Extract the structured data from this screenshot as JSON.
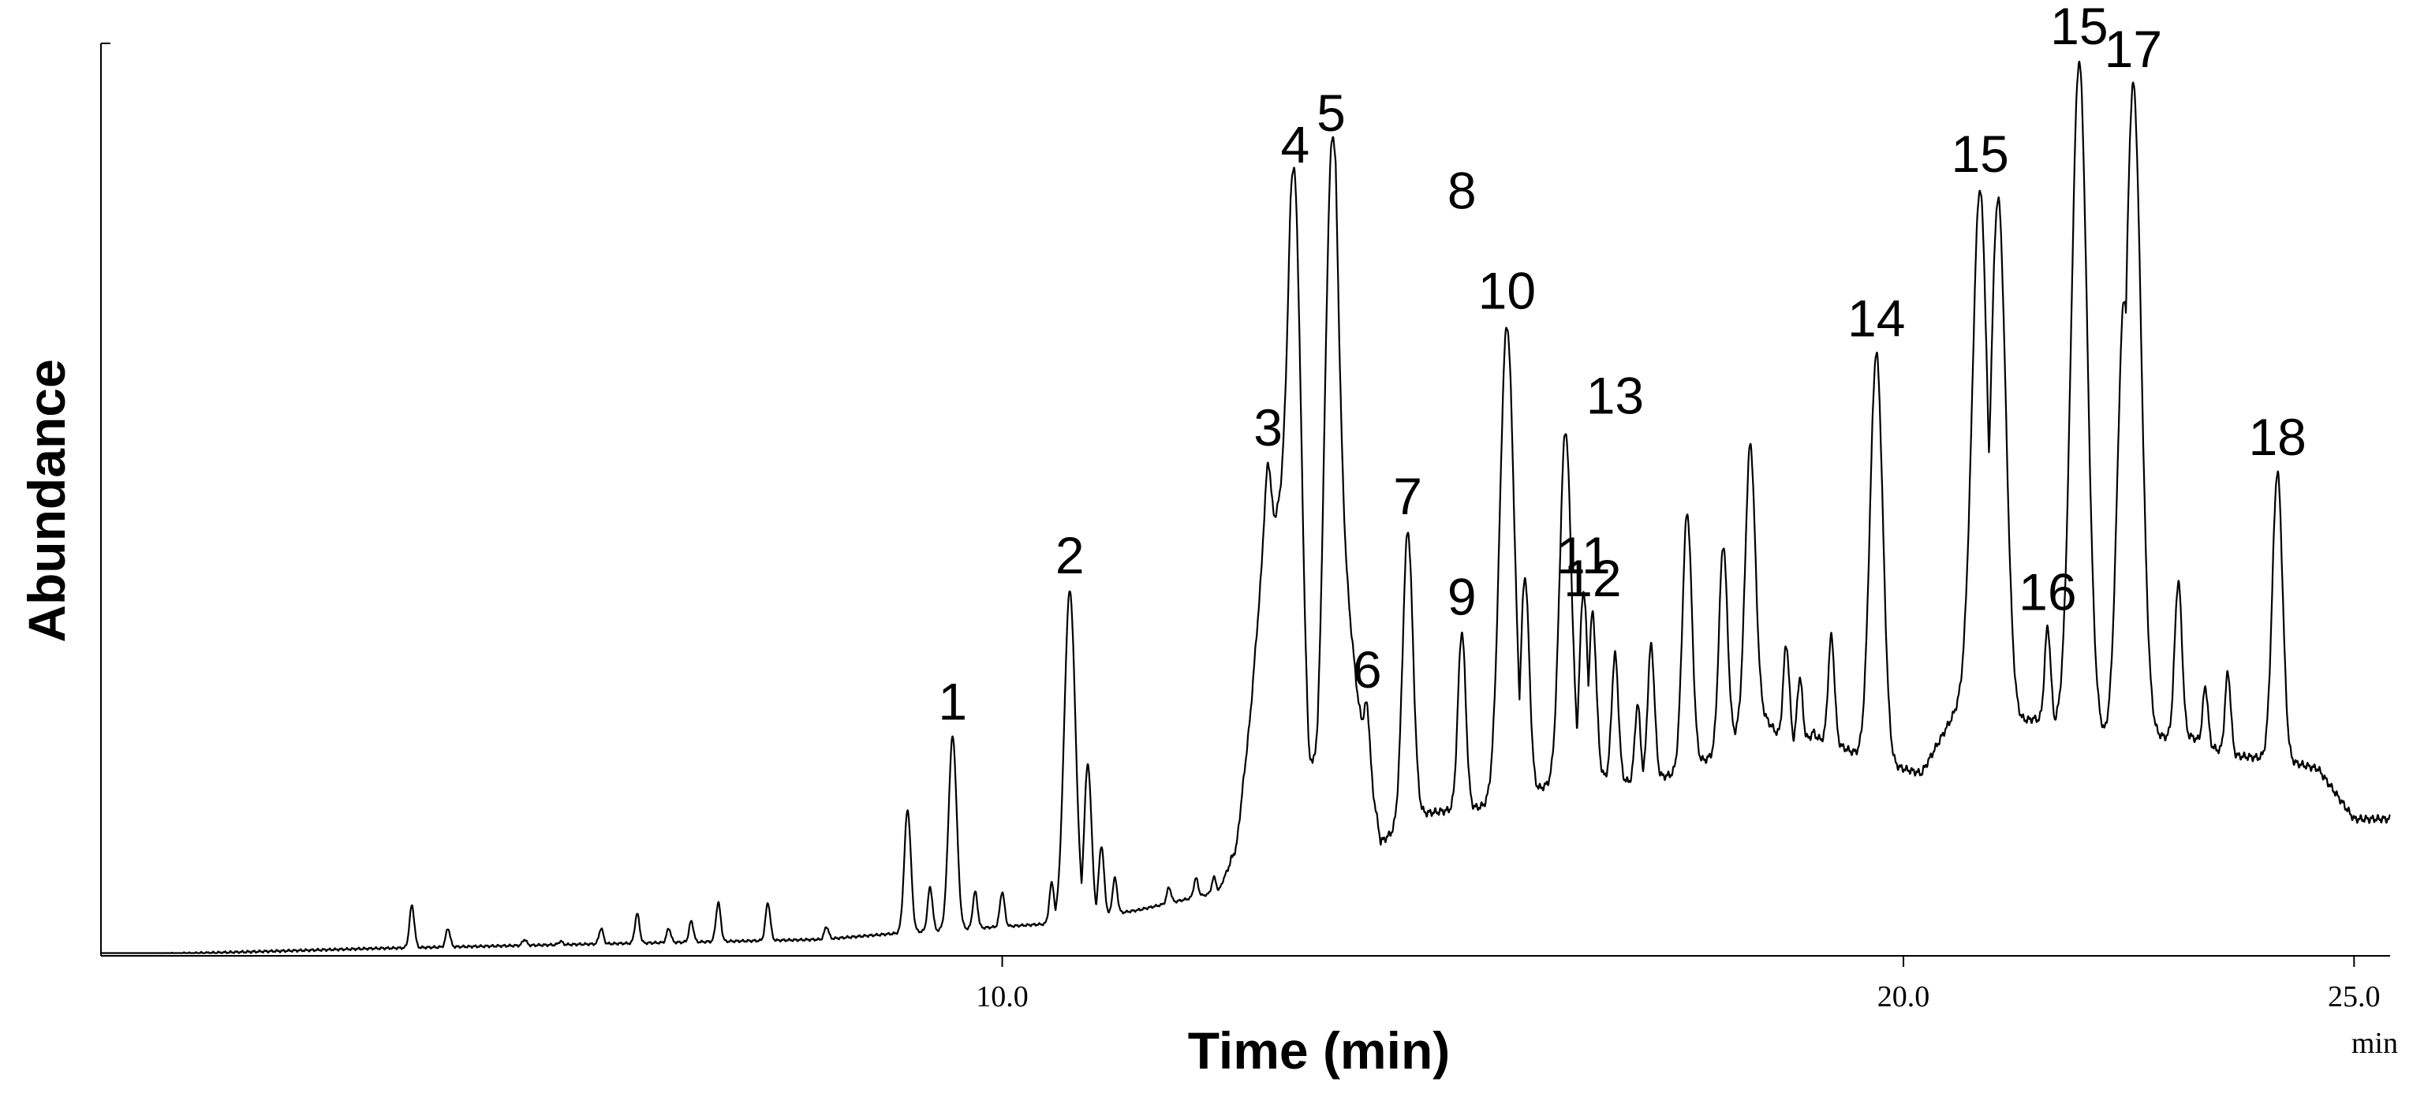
{
  "chart_data": {
    "type": "line",
    "title": "",
    "xlabel": "Time (min)",
    "ylabel": "Abundance",
    "x_unit": "min",
    "xlim": [
      0,
      25.4
    ],
    "ylim": [
      0,
      100
    ],
    "x_ticks": [
      {
        "value": 10,
        "label": "10.0"
      },
      {
        "value": 20,
        "label": "20.0"
      },
      {
        "value": 25,
        "label": "25.0"
      }
    ],
    "grid": false,
    "baseline": [
      [
        3.0,
        0.8
      ],
      [
        8.0,
        1.8
      ],
      [
        9.0,
        2.6
      ],
      [
        10.5,
        3.5
      ],
      [
        11.5,
        5.0
      ],
      [
        12.4,
        7.0
      ],
      [
        12.6,
        12.0
      ],
      [
        12.75,
        26.0
      ],
      [
        12.9,
        45.0
      ],
      [
        13.2,
        52.0
      ],
      [
        13.4,
        20.0
      ],
      [
        13.5,
        21.0
      ],
      [
        13.7,
        52.0
      ],
      [
        13.95,
        28.0
      ],
      [
        14.2,
        12.5
      ],
      [
        14.6,
        15.5
      ],
      [
        15.0,
        16.0
      ],
      [
        15.5,
        16.5
      ],
      [
        16.0,
        18.5
      ],
      [
        16.5,
        20.0
      ],
      [
        17.0,
        19.0
      ],
      [
        17.5,
        20.0
      ],
      [
        17.9,
        22.0
      ],
      [
        18.4,
        27.0
      ],
      [
        18.7,
        23.0
      ],
      [
        19.0,
        24.0
      ],
      [
        19.3,
        23.0
      ],
      [
        19.6,
        21.5
      ],
      [
        20.2,
        20.0
      ],
      [
        20.7,
        29.0
      ],
      [
        21.0,
        25.0
      ],
      [
        21.45,
        26.0
      ],
      [
        21.8,
        25.0
      ],
      [
        22.4,
        24.0
      ],
      [
        23.2,
        24.0
      ],
      [
        23.6,
        22.0
      ],
      [
        24.2,
        21.5
      ],
      [
        24.6,
        20.5
      ],
      [
        25.0,
        15.0
      ],
      [
        25.4,
        15.0
      ]
    ],
    "series": [
      {
        "values": [
          [
            3.45,
            5.5
          ],
          [
            3.85,
            3.0
          ],
          [
            4.7,
            1.8
          ],
          [
            5.1,
            1.6
          ],
          [
            5.55,
            3.0
          ],
          [
            5.95,
            4.6
          ],
          [
            6.3,
            3.0
          ],
          [
            6.55,
            3.8
          ],
          [
            6.85,
            5.8
          ],
          [
            7.4,
            5.8
          ],
          [
            8.05,
            3.2
          ],
          [
            8.95,
            16.0
          ],
          [
            9.2,
            7.5
          ],
          [
            9.45,
            24.0
          ],
          [
            9.7,
            7.0
          ],
          [
            10.0,
            7.0
          ],
          [
            10.55,
            8.0
          ],
          [
            10.75,
            40.0
          ],
          [
            10.95,
            21.0
          ],
          [
            11.1,
            12.0
          ],
          [
            11.25,
            8.5
          ],
          [
            11.85,
            7.5
          ],
          [
            12.15,
            8.5
          ],
          [
            12.35,
            8.6
          ],
          [
            12.95,
            54.0
          ],
          [
            13.25,
            85.0
          ],
          [
            13.65,
            88.5
          ],
          [
            14.05,
            27.5
          ],
          [
            14.5,
            46.5
          ],
          [
            15.1,
            35.5
          ],
          [
            15.6,
            69.0
          ],
          [
            15.8,
            41.5
          ],
          [
            16.25,
            57.5
          ],
          [
            16.45,
            40.0
          ],
          [
            16.55,
            37.5
          ],
          [
            16.8,
            33.0
          ],
          [
            17.05,
            27.5
          ],
          [
            17.2,
            34.0
          ],
          [
            17.6,
            48.5
          ],
          [
            18.0,
            45.0
          ],
          [
            18.3,
            56.0
          ],
          [
            18.7,
            34.0
          ],
          [
            18.85,
            30.5
          ],
          [
            19.0,
            24.5
          ],
          [
            19.2,
            35.0
          ],
          [
            19.7,
            66.0
          ],
          [
            20.85,
            84.0
          ],
          [
            21.05,
            83.0
          ],
          [
            21.6,
            36.0
          ],
          [
            21.95,
            98.0
          ],
          [
            22.45,
            72.0
          ],
          [
            22.55,
            95.5
          ],
          [
            23.05,
            41.0
          ],
          [
            23.35,
            29.5
          ],
          [
            23.6,
            31.0
          ],
          [
            24.15,
            53.0
          ],
          [
            24.5,
            20.0
          ]
        ]
      }
    ],
    "annotations": [
      {
        "label": "1",
        "x": 9.45,
        "y": 24.0
      },
      {
        "label": "2",
        "x": 10.75,
        "y": 40.0
      },
      {
        "label": "3",
        "x": 12.95,
        "y": 54.0
      },
      {
        "label": "4",
        "x": 13.25,
        "y": 85.0
      },
      {
        "label": "5",
        "x": 13.65,
        "y": 88.5
      },
      {
        "label": "6",
        "x": 14.05,
        "y": 27.5
      },
      {
        "label": "7",
        "x": 14.5,
        "y": 46.5
      },
      {
        "label": "8",
        "x": 15.1,
        "y": 80.0
      },
      {
        "label": "9",
        "x": 15.1,
        "y": 35.5
      },
      {
        "label": "10",
        "x": 15.6,
        "y": 69.0
      },
      {
        "label": "11",
        "x": 16.45,
        "y": 40.0
      },
      {
        "label": "12",
        "x": 16.55,
        "y": 37.5
      },
      {
        "label": "13",
        "x": 16.8,
        "y": 57.5
      },
      {
        "label": "14",
        "x": 19.7,
        "y": 66.0
      },
      {
        "label": "15",
        "x": 20.85,
        "y": 84.0
      },
      {
        "label": "16",
        "x": 21.6,
        "y": 36.0
      },
      {
        "label": "15",
        "x": 21.95,
        "y": 98.0
      },
      {
        "label": "17",
        "x": 22.55,
        "y": 95.5
      },
      {
        "label": "18",
        "x": 24.15,
        "y": 53.0
      }
    ]
  }
}
